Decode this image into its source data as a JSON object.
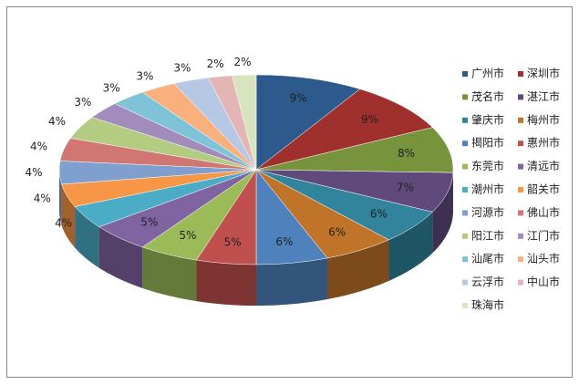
{
  "chart_data": {
    "type": "pie3d",
    "categories": [
      "广州市",
      "深圳市",
      "茂名市",
      "湛江市",
      "肇庆市",
      "梅州市",
      "揭阳市",
      "惠州市",
      "东莞市",
      "清远市",
      "潮州市",
      "韶关市",
      "河源市",
      "佛山市",
      "阳江市",
      "江门市",
      "汕尾市",
      "汕头市",
      "云浮市",
      "中山市",
      "珠海市"
    ],
    "values": [
      9,
      9,
      8,
      7,
      6,
      6,
      6,
      5,
      5,
      5,
      4,
      4,
      4,
      4,
      4,
      3,
      3,
      3,
      3,
      2,
      2
    ],
    "value_labels": [
      "9%",
      "9%",
      "8%",
      "7%",
      "6%",
      "6%",
      "6%",
      "5%",
      "5%",
      "5%",
      "4%",
      "4%",
      "4%",
      "4%",
      "4%",
      "3%",
      "3%",
      "3%",
      "3%",
      "2%",
      "2%"
    ],
    "colors": [
      "#2C5A8C",
      "#A0302D",
      "#77933C",
      "#5F4A7B",
      "#31849B",
      "#C0742A",
      "#4F81BD",
      "#C0504D",
      "#9BBB59",
      "#8064A2",
      "#4BACC6",
      "#F79646",
      "#7F9FCF",
      "#D07673",
      "#B3CC82",
      "#A18CBB",
      "#7FC3D8",
      "#F9B07D",
      "#B6C8E4",
      "#E3B5B4",
      "#D7E4BD"
    ],
    "legend": "right"
  }
}
